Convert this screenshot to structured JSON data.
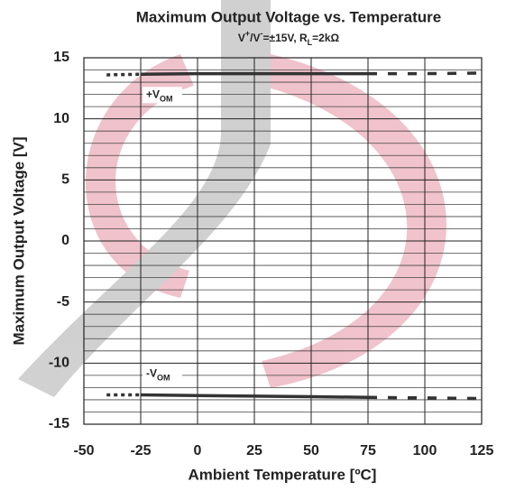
{
  "chart_data": {
    "type": "line",
    "title": "Maximum Output Voltage vs. Temperature",
    "subtitle_parts": [
      {
        "text": "V"
      },
      {
        "text": "+",
        "shift": "super"
      },
      {
        "text": "/V"
      },
      {
        "text": "-",
        "shift": "super"
      },
      {
        "text": "=±15V, R"
      },
      {
        "text": "L",
        "shift": "sub"
      },
      {
        "text": "=2kΩ"
      }
    ],
    "x_label": "Ambient Temperature [ºC]",
    "y_label": "Maximum Output Voltage [V]",
    "xlim": [
      -50,
      125
    ],
    "xticks": [
      -50,
      -25,
      0,
      25,
      50,
      75,
      100,
      125
    ],
    "ylim": [
      -15,
      15
    ],
    "yticks": [
      -15,
      -10,
      -5,
      0,
      5,
      10,
      15
    ],
    "minor_yticks": [
      -14,
      -13,
      -12,
      -11,
      -9,
      -8,
      -7,
      -6,
      -4,
      -3,
      -2,
      -1,
      1,
      2,
      3,
      4,
      6,
      7,
      8,
      9,
      11,
      12,
      13,
      14
    ],
    "grid": true,
    "series": [
      {
        "color": "#333333",
        "dash": "dotted",
        "x": [
          -40,
          -25
        ],
        "values": [
          13.6,
          13.65
        ]
      },
      {
        "color": "#333333",
        "dash": "solid",
        "x": [
          -25,
          0,
          25,
          50,
          75
        ],
        "values": [
          13.65,
          13.7,
          13.7,
          13.7,
          13.7
        ],
        "label": {
          "main": "+V",
          "sub": "OM"
        }
      },
      {
        "color": "#333333",
        "dash": "dashed",
        "x": [
          75,
          100,
          125
        ],
        "values": [
          13.7,
          13.7,
          13.75
        ]
      },
      {
        "color": "#333333",
        "dash": "dotted",
        "x": [
          -40,
          -25
        ],
        "values": [
          -12.6,
          -12.6
        ]
      },
      {
        "color": "#333333",
        "dash": "solid",
        "x": [
          -25,
          0,
          25,
          50,
          75
        ],
        "values": [
          -12.6,
          -12.65,
          -12.7,
          -12.75,
          -12.8
        ],
        "label": {
          "main": "-V",
          "sub": "OM"
        }
      },
      {
        "color": "#333333",
        "dash": "dashed",
        "x": [
          75,
          100,
          125
        ],
        "values": [
          -12.8,
          -12.85,
          -12.9
        ]
      }
    ]
  }
}
